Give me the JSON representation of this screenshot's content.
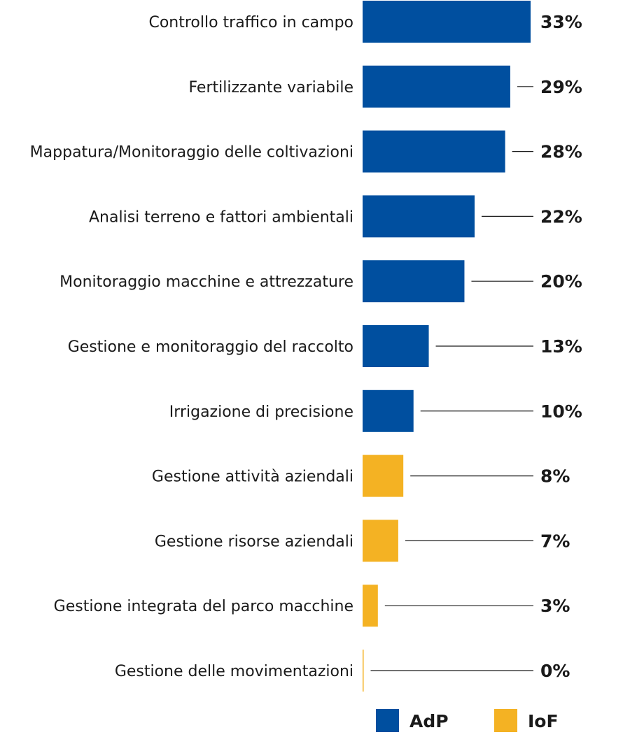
{
  "chart_data": {
    "type": "bar",
    "orientation": "horizontal",
    "categories": [
      "Controllo traffico in campo",
      "Fertilizzante variabile",
      "Mappatura/Monitoraggio delle coltivazioni",
      "Analisi terreno e fattori ambientali",
      "Monitoraggio macchine e attrezzature",
      "Gestione e monitoraggio del raccolto",
      "Irrigazione di precisione",
      "Gestione attività aziendali",
      "Gestione risorse aziendali",
      "Gestione integrata del parco macchine",
      "Gestione delle movimentazioni"
    ],
    "values": [
      33,
      29,
      28,
      22,
      20,
      13,
      10,
      8,
      7,
      3,
      0
    ],
    "value_labels": [
      "33%",
      "29%",
      "28%",
      "22%",
      "20%",
      "13%",
      "10%",
      "8%",
      "7%",
      "3%",
      "0%"
    ],
    "groups": [
      "AdP",
      "AdP",
      "AdP",
      "AdP",
      "AdP",
      "AdP",
      "AdP",
      "IoF",
      "IoF",
      "IoF",
      "IoF"
    ],
    "xlim": [
      0,
      35
    ],
    "grid": false,
    "legend": {
      "position": "bottom-right",
      "entries": [
        {
          "name": "AdP",
          "color": "#004f9f"
        },
        {
          "name": "IoF",
          "color": "#f4b223"
        }
      ]
    }
  }
}
